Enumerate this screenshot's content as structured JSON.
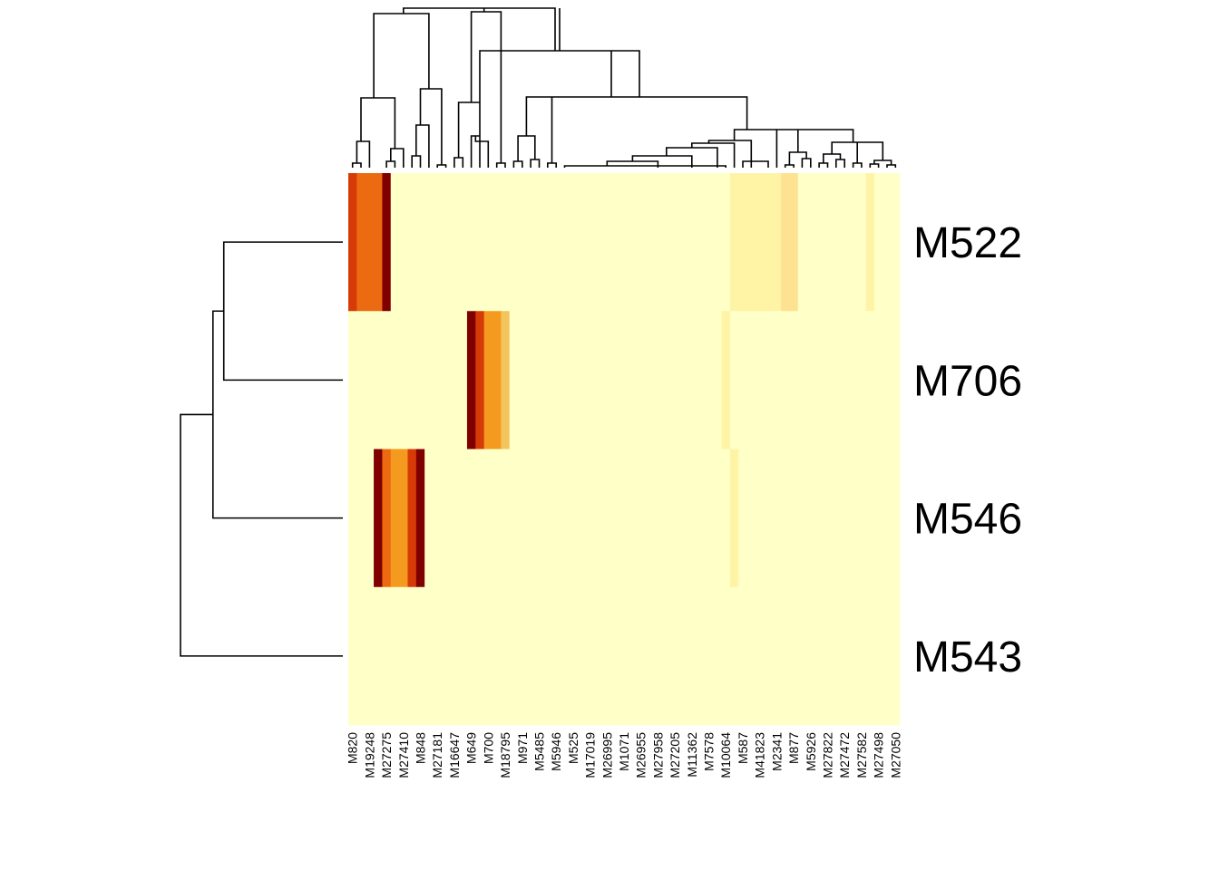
{
  "chart_data": {
    "type": "heatmap",
    "title": "",
    "xlabel": "",
    "ylabel": "",
    "rows": [
      "M522",
      "M706",
      "M546",
      "M543"
    ],
    "col_labels": [
      "M820",
      "M19248",
      "M27275",
      "M27410",
      "M848",
      "M27181",
      "M16647",
      "M649",
      "M700",
      "M18795",
      "M971",
      "M5485",
      "M5946",
      "M525",
      "M17019",
      "M26995",
      "M1071",
      "M26955",
      "M27958",
      "M27205",
      "M11362",
      "M7578",
      "M10064",
      "M587",
      "M41823",
      "M2341",
      "M877",
      "M5926",
      "M27822",
      "M27472",
      "M27582",
      "M27498",
      "M27050"
    ],
    "n_columns": 65,
    "color_scale": [
      "#FFFFC8",
      "#FFF3A6",
      "#FDE391",
      "#F9D57A",
      "#F4C45D",
      "#F49A1E",
      "#EC6B12",
      "#D63B07",
      "#800000"
    ],
    "cells": [
      [
        7,
        6,
        6,
        6,
        8,
        0,
        0,
        0,
        0,
        0,
        0,
        0,
        0,
        0,
        0,
        0,
        0,
        0,
        0,
        0,
        0,
        0,
        0,
        0,
        0,
        0,
        0,
        0,
        0,
        0,
        0,
        0,
        0,
        0,
        0,
        0,
        0,
        0,
        0,
        0,
        0,
        0,
        0,
        0,
        0,
        1,
        1,
        1,
        1,
        1,
        1,
        2,
        2,
        0,
        0,
        0,
        0,
        0,
        0,
        0,
        0,
        1,
        0,
        0,
        0
      ],
      [
        0,
        0,
        0,
        0,
        0,
        0,
        0,
        0,
        0,
        0,
        0,
        0,
        0,
        0,
        8,
        7,
        5,
        5,
        4,
        0,
        0,
        0,
        0,
        0,
        0,
        0,
        0,
        0,
        0,
        0,
        0,
        0,
        0,
        0,
        0,
        0,
        0,
        0,
        0,
        0,
        0,
        0,
        0,
        0,
        1,
        0,
        0,
        0,
        0,
        0,
        0,
        0,
        0,
        0,
        0,
        0,
        0,
        0,
        0,
        0,
        0,
        0,
        0,
        0,
        0
      ],
      [
        0,
        0,
        0,
        8,
        6,
        5,
        5,
        7,
        8,
        0,
        0,
        0,
        0,
        0,
        0,
        0,
        0,
        0,
        0,
        0,
        0,
        0,
        0,
        0,
        0,
        0,
        0,
        0,
        0,
        0,
        0,
        0,
        0,
        0,
        0,
        0,
        0,
        0,
        0,
        0,
        0,
        0,
        0,
        0,
        0,
        1,
        0,
        0,
        0,
        0,
        0,
        0,
        0,
        0,
        0,
        0,
        0,
        0,
        0,
        0,
        0,
        0,
        0,
        0,
        0
      ],
      [
        0,
        0,
        0,
        0,
        0,
        0,
        0,
        0,
        0,
        0,
        0,
        0,
        0,
        0,
        0,
        0,
        0,
        0,
        0,
        0,
        0,
        0,
        0,
        0,
        0,
        0,
        0,
        0,
        0,
        0,
        0,
        0,
        0,
        0,
        0,
        0,
        0,
        0,
        0,
        0,
        0,
        0,
        0,
        0,
        0,
        0,
        0,
        0,
        0,
        0,
        0,
        0,
        0,
        0,
        0,
        0,
        0,
        0,
        0,
        0,
        0,
        0,
        0,
        0,
        0
      ]
    ],
    "row_dendrogram": {
      "merges": [
        [
          "M522",
          "M706"
        ],
        [
          "M522+M706",
          "M546"
        ],
        [
          "M522+M706+M546",
          "M543"
        ]
      ],
      "heights": [
        0.55,
        0.6,
        0.75
      ]
    },
    "legend": false
  }
}
